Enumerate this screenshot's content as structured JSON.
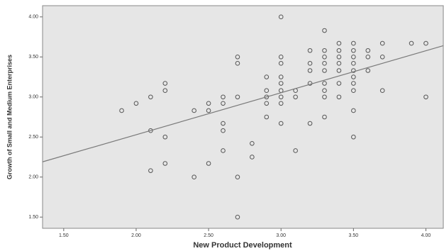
{
  "chart_data": {
    "type": "scatter",
    "x_label": "New Product Development",
    "y_label": "Growth of Small and Medium Enterprises",
    "xlim": [
      1.354,
      4.12
    ],
    "ylim": [
      1.36,
      4.14
    ],
    "xticks": [
      {
        "value": 1.5,
        "label": "1.50"
      },
      {
        "value": 2,
        "label": "2.00"
      },
      {
        "value": 2.5,
        "label": "2.50"
      },
      {
        "value": 3,
        "label": "3.00"
      },
      {
        "value": 3.5,
        "label": "3.50"
      },
      {
        "value": 4,
        "label": "4.00"
      }
    ],
    "yticks": [
      {
        "value": 1.5,
        "label": "1.50"
      },
      {
        "value": 2,
        "label": "2.00"
      },
      {
        "value": 2.5,
        "label": "2.50"
      },
      {
        "value": 3,
        "label": "3.00"
      },
      {
        "value": 3.5,
        "label": "3.50"
      },
      {
        "value": 4,
        "label": "4.00"
      }
    ],
    "background": "#e6e6e6",
    "color": "#555555",
    "fit_color": "#7a7a7a",
    "x": [
      1.9,
      2.0,
      2.1,
      2.1,
      2.1,
      2.2,
      2.2,
      2.2,
      2.2,
      2.4,
      2.4,
      2.5,
      2.5,
      2.5,
      2.6,
      2.6,
      2.6,
      2.6,
      2.6,
      2.7,
      2.7,
      2.7,
      2.7,
      2.7,
      2.8,
      2.8,
      2.9,
      2.9,
      2.9,
      2.9,
      2.9,
      3.0,
      3.0,
      3.0,
      3.0,
      3.0,
      3.0,
      3.0,
      3.0,
      3.0,
      3.1,
      3.1,
      3.1,
      3.2,
      3.2,
      3.2,
      3.2,
      3.2,
      3.3,
      3.3,
      3.3,
      3.3,
      3.3,
      3.3,
      3.3,
      3.3,
      3.3,
      3.4,
      3.4,
      3.4,
      3.4,
      3.4,
      3.4,
      3.4,
      3.5,
      3.5,
      3.5,
      3.5,
      3.5,
      3.5,
      3.5,
      3.5,
      3.5,
      3.5,
      3.6,
      3.6,
      3.6,
      3.7,
      3.7,
      3.7,
      3.9,
      4.0,
      4.0
    ],
    "values": [
      2.83,
      2.92,
      3.0,
      2.58,
      2.08,
      3.17,
      3.08,
      2.5,
      2.17,
      2.83,
      2.0,
      2.92,
      2.83,
      2.17,
      3.0,
      2.92,
      2.67,
      2.58,
      2.33,
      3.5,
      3.42,
      3.0,
      2.0,
      1.5,
      2.42,
      2.25,
      3.25,
      3.08,
      3.0,
      2.92,
      2.75,
      4.0,
      3.5,
      3.42,
      3.25,
      3.17,
      3.08,
      3.0,
      2.92,
      2.67,
      3.08,
      3.0,
      2.33,
      3.58,
      3.42,
      3.33,
      3.17,
      2.67,
      3.83,
      3.58,
      3.5,
      3.42,
      3.33,
      3.17,
      3.08,
      3.0,
      2.75,
      3.67,
      3.58,
      3.5,
      3.42,
      3.33,
      3.17,
      3.0,
      3.67,
      3.58,
      3.5,
      3.42,
      3.33,
      3.25,
      3.17,
      3.08,
      2.83,
      2.5,
      3.58,
      3.5,
      3.33,
      3.67,
      3.5,
      3.08,
      3.67,
      3.67,
      3.0
    ],
    "fit_line": {
      "x": [
        1.354,
        4.12
      ],
      "y": [
        2.19,
        3.64
      ]
    }
  }
}
